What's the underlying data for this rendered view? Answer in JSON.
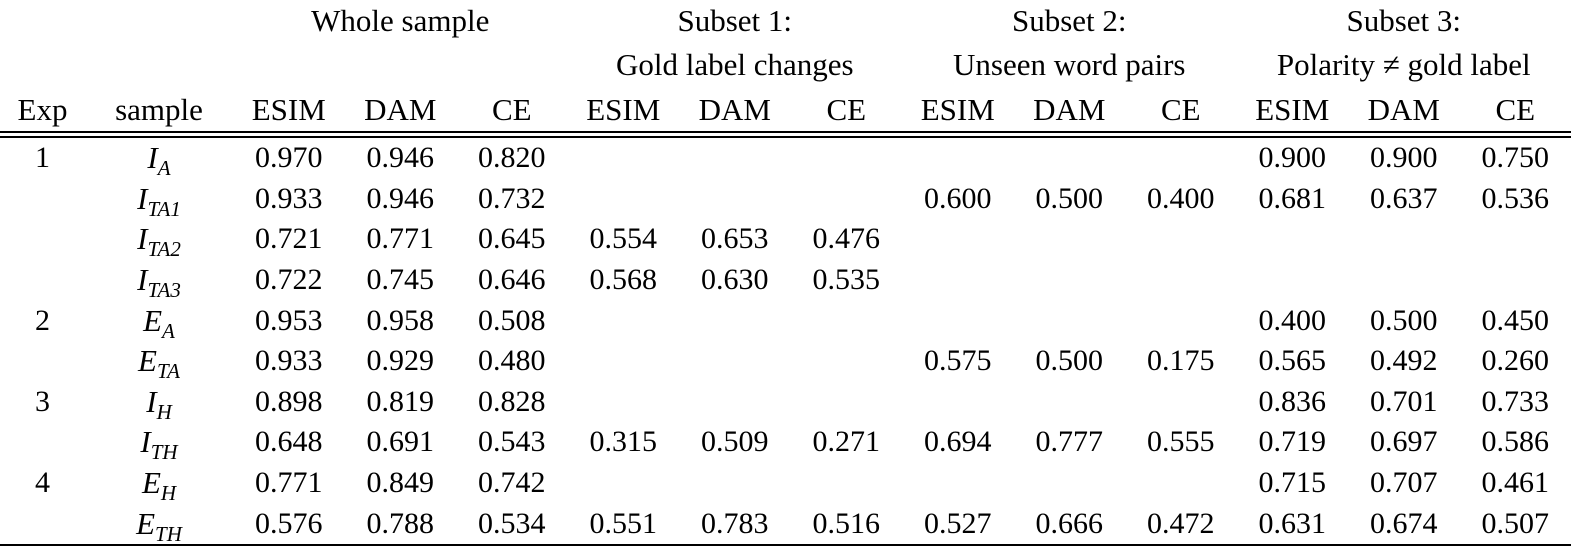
{
  "colors": {
    "text": "#000000",
    "background": "#ffffff",
    "rule": "#000000"
  },
  "table": {
    "corner": {
      "exp": "Exp",
      "sample": "sample"
    },
    "groups": [
      {
        "title": "Whole sample",
        "subtitle": "",
        "models": [
          "ESIM",
          "DAM",
          "CE"
        ]
      },
      {
        "title": "Subset 1:",
        "subtitle": "Gold label changes",
        "models": [
          "ESIM",
          "DAM",
          "CE"
        ]
      },
      {
        "title": "Subset 2:",
        "subtitle": "Unseen word pairs",
        "models": [
          "ESIM",
          "DAM",
          "CE"
        ]
      },
      {
        "title": "Subset 3:",
        "subtitle": "Polarity ≠ gold label",
        "models": [
          "ESIM",
          "DAM",
          "CE"
        ]
      }
    ],
    "rows": [
      {
        "exp": "1",
        "base": "I",
        "sub": "A",
        "values": [
          "0.970",
          "0.946",
          "0.820",
          "",
          "",
          "",
          "",
          "",
          "",
          "0.900",
          "0.900",
          "0.750"
        ]
      },
      {
        "exp": "",
        "base": "I",
        "sub": "TA1",
        "values": [
          "0.933",
          "0.946",
          "0.732",
          "",
          "",
          "",
          "0.600",
          "0.500",
          "0.400",
          "0.681",
          "0.637",
          "0.536"
        ]
      },
      {
        "exp": "",
        "base": "I",
        "sub": "TA2",
        "values": [
          "0.721",
          "0.771",
          "0.645",
          "0.554",
          "0.653",
          "0.476",
          "",
          "",
          "",
          "",
          "",
          ""
        ]
      },
      {
        "exp": "",
        "base": "I",
        "sub": "TA3",
        "values": [
          "0.722",
          "0.745",
          "0.646",
          "0.568",
          "0.630",
          "0.535",
          "",
          "",
          "",
          "",
          "",
          ""
        ]
      },
      {
        "exp": "2",
        "base": "E",
        "sub": "A",
        "values": [
          "0.953",
          "0.958",
          "0.508",
          "",
          "",
          "",
          "",
          "",
          "",
          "0.400",
          "0.500",
          "0.450"
        ]
      },
      {
        "exp": "",
        "base": "E",
        "sub": "TA",
        "values": [
          "0.933",
          "0.929",
          "0.480",
          "",
          "",
          "",
          "0.575",
          "0.500",
          "0.175",
          "0.565",
          "0.492",
          "0.260"
        ]
      },
      {
        "exp": "3",
        "base": "I",
        "sub": "H",
        "values": [
          "0.898",
          "0.819",
          "0.828",
          "",
          "",
          "",
          "",
          "",
          "",
          "0.836",
          "0.701",
          "0.733"
        ]
      },
      {
        "exp": "",
        "base": "I",
        "sub": "TH",
        "values": [
          "0.648",
          "0.691",
          "0.543",
          "0.315",
          "0.509",
          "0.271",
          "0.694",
          "0.777",
          "0.555",
          "0.719",
          "0.697",
          "0.586"
        ]
      },
      {
        "exp": "4",
        "base": "E",
        "sub": "H",
        "values": [
          "0.771",
          "0.849",
          "0.742",
          "",
          "",
          "",
          "",
          "",
          "",
          "0.715",
          "0.707",
          "0.461"
        ]
      },
      {
        "exp": "",
        "base": "E",
        "sub": "TH",
        "values": [
          "0.576",
          "0.788",
          "0.534",
          "0.551",
          "0.783",
          "0.516",
          "0.527",
          "0.666",
          "0.472",
          "0.631",
          "0.674",
          "0.507"
        ]
      }
    ]
  }
}
